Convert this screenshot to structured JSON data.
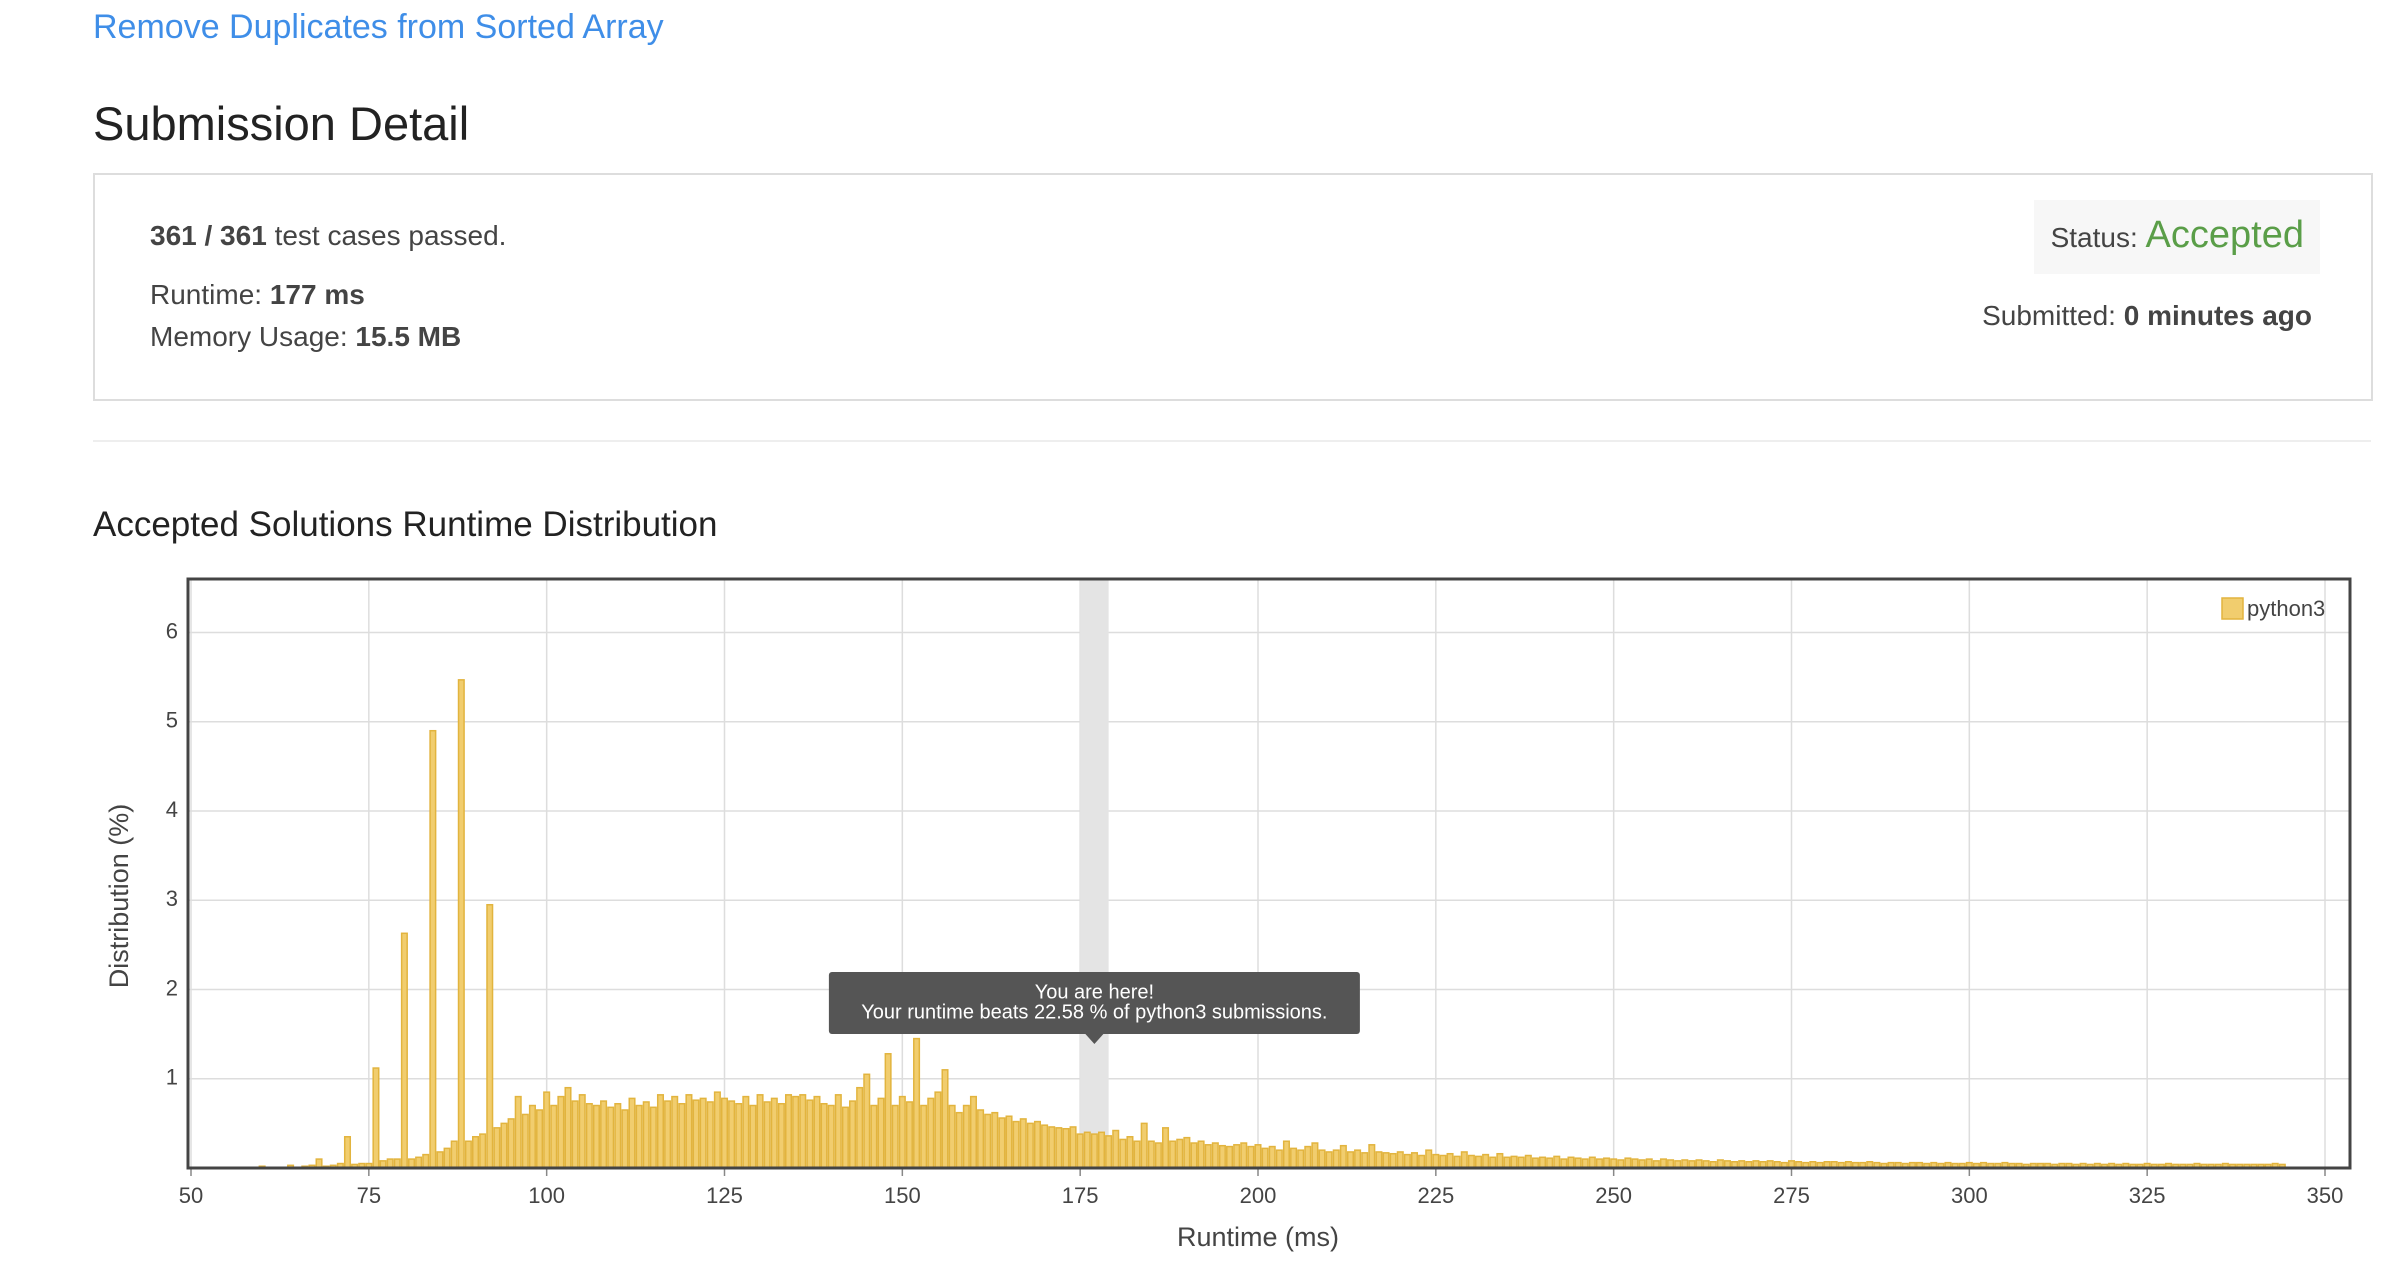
{
  "header": {
    "problem_link": "Remove Duplicates from Sorted Array",
    "title": "Submission Detail"
  },
  "submission": {
    "passed": "361 / 361",
    "passed_text": "test cases passed.",
    "runtime_label": "Runtime:",
    "runtime": "177 ms",
    "memory_label": "Memory Usage:",
    "memory": "15.5 MB",
    "status_label": "Status:",
    "status": "Accepted",
    "submitted_label": "Submitted:",
    "submitted": "0 minutes ago"
  },
  "chart_data": {
    "type": "bar",
    "title": "Accepted Solutions Runtime Distribution",
    "x_label": "Runtime (ms)",
    "y_label": "Distribution (%)",
    "x": [
      60,
      61,
      62,
      63,
      64,
      65,
      66,
      67,
      68,
      69,
      70,
      71,
      72,
      73,
      74,
      75,
      76,
      77,
      78,
      79,
      80,
      81,
      82,
      83,
      84,
      85,
      86,
      87,
      88,
      89,
      90,
      91,
      92,
      93,
      94,
      95,
      96,
      97,
      98,
      99,
      100,
      101,
      102,
      103,
      104,
      105,
      106,
      107,
      108,
      109,
      110,
      111,
      112,
      113,
      114,
      115,
      116,
      117,
      118,
      119,
      120,
      121,
      122,
      123,
      124,
      125,
      126,
      127,
      128,
      129,
      130,
      131,
      132,
      133,
      134,
      135,
      136,
      137,
      138,
      139,
      140,
      141,
      142,
      143,
      144,
      145,
      146,
      147,
      148,
      149,
      150,
      151,
      152,
      153,
      154,
      155,
      156,
      157,
      158,
      159,
      160,
      161,
      162,
      163,
      164,
      165,
      166,
      167,
      168,
      169,
      170,
      171,
      172,
      173,
      174,
      175,
      176,
      177,
      178,
      179,
      180,
      181,
      182,
      183,
      184,
      185,
      186,
      187,
      188,
      189,
      190,
      191,
      192,
      193,
      194,
      195,
      196,
      197,
      198,
      199,
      200,
      201,
      202,
      203,
      204,
      205,
      206,
      207,
      208,
      209,
      210,
      211,
      212,
      213,
      214,
      215,
      216,
      217,
      218,
      219,
      220,
      221,
      222,
      223,
      224,
      225,
      226,
      227,
      228,
      229,
      230,
      231,
      232,
      233,
      234,
      235,
      236,
      237,
      238,
      239,
      240,
      241,
      242,
      243,
      244,
      245,
      246,
      247,
      248,
      249,
      250,
      251,
      252,
      253,
      254,
      255,
      256,
      257,
      258,
      259,
      260,
      261,
      262,
      263,
      264,
      265,
      266,
      267,
      268,
      269,
      270,
      271,
      272,
      273,
      274,
      275,
      276,
      277,
      278,
      279,
      280,
      281,
      282,
      283,
      284,
      285,
      286,
      287,
      288,
      289,
      290,
      291,
      292,
      293,
      294,
      295,
      296,
      297,
      298,
      299,
      300,
      301,
      302,
      303,
      304,
      305,
      306,
      307,
      308,
      309,
      310,
      311,
      312,
      313,
      314,
      315,
      316,
      317,
      318,
      319,
      320,
      321,
      322,
      323,
      324,
      325,
      326,
      327,
      328,
      329,
      330,
      331,
      332,
      333,
      334,
      335,
      336,
      337,
      338,
      339,
      340,
      341,
      342,
      343,
      344
    ],
    "series": [
      {
        "name": "python3",
        "color": "#f1cd6e",
        "values": [
          0.02,
          0,
          0,
          0,
          0.03,
          0,
          0.02,
          0.03,
          0.1,
          0.02,
          0.03,
          0.05,
          0.35,
          0.04,
          0.05,
          0.05,
          1.12,
          0.08,
          0.1,
          0.1,
          2.63,
          0.1,
          0.12,
          0.15,
          4.9,
          0.18,
          0.22,
          0.3,
          5.47,
          0.3,
          0.35,
          0.38,
          2.95,
          0.45,
          0.5,
          0.55,
          0.8,
          0.6,
          0.7,
          0.65,
          0.85,
          0.7,
          0.8,
          0.9,
          0.75,
          0.82,
          0.72,
          0.7,
          0.75,
          0.68,
          0.72,
          0.65,
          0.78,
          0.7,
          0.74,
          0.68,
          0.82,
          0.75,
          0.8,
          0.72,
          0.82,
          0.76,
          0.78,
          0.74,
          0.85,
          0.78,
          0.75,
          0.72,
          0.8,
          0.7,
          0.82,
          0.74,
          0.78,
          0.72,
          0.82,
          0.8,
          0.82,
          0.76,
          0.8,
          0.72,
          0.7,
          0.82,
          0.68,
          0.75,
          0.9,
          1.05,
          0.7,
          0.78,
          1.28,
          0.7,
          0.8,
          0.74,
          1.45,
          0.7,
          0.78,
          0.85,
          1.1,
          0.7,
          0.62,
          0.7,
          0.8,
          0.65,
          0.6,
          0.62,
          0.56,
          0.58,
          0.52,
          0.55,
          0.5,
          0.52,
          0.48,
          0.46,
          0.45,
          0.44,
          0.46,
          0.38,
          0.4,
          0.38,
          0.4,
          0.36,
          0.42,
          0.32,
          0.35,
          0.3,
          0.5,
          0.3,
          0.28,
          0.45,
          0.3,
          0.32,
          0.34,
          0.28,
          0.3,
          0.26,
          0.28,
          0.25,
          0.24,
          0.26,
          0.28,
          0.24,
          0.26,
          0.22,
          0.24,
          0.2,
          0.3,
          0.22,
          0.2,
          0.24,
          0.28,
          0.2,
          0.18,
          0.2,
          0.25,
          0.18,
          0.2,
          0.17,
          0.26,
          0.18,
          0.17,
          0.16,
          0.18,
          0.15,
          0.17,
          0.14,
          0.2,
          0.15,
          0.14,
          0.16,
          0.13,
          0.18,
          0.14,
          0.13,
          0.15,
          0.12,
          0.16,
          0.12,
          0.13,
          0.12,
          0.14,
          0.11,
          0.12,
          0.11,
          0.13,
          0.1,
          0.12,
          0.11,
          0.1,
          0.12,
          0.1,
          0.11,
          0.1,
          0.09,
          0.11,
          0.1,
          0.09,
          0.1,
          0.08,
          0.1,
          0.09,
          0.08,
          0.09,
          0.08,
          0.09,
          0.08,
          0.07,
          0.09,
          0.08,
          0.07,
          0.08,
          0.07,
          0.08,
          0.07,
          0.08,
          0.07,
          0.06,
          0.08,
          0.07,
          0.06,
          0.07,
          0.06,
          0.07,
          0.07,
          0.06,
          0.07,
          0.06,
          0.06,
          0.07,
          0.06,
          0.05,
          0.06,
          0.06,
          0.05,
          0.06,
          0.06,
          0.05,
          0.06,
          0.05,
          0.06,
          0.05,
          0.05,
          0.06,
          0.05,
          0.06,
          0.05,
          0.05,
          0.06,
          0.05,
          0.05,
          0.04,
          0.05,
          0.05,
          0.05,
          0.04,
          0.05,
          0.05,
          0.04,
          0.05,
          0.04,
          0.05,
          0.04,
          0.05,
          0.04,
          0.05,
          0.04,
          0.04,
          0.05,
          0.04,
          0.04,
          0.05,
          0.04,
          0.04,
          0.04,
          0.05,
          0.04,
          0.04,
          0.04,
          0.05,
          0.04,
          0.04,
          0.04,
          0.04,
          0.04,
          0.04,
          0.05,
          0.04
        ]
      }
    ],
    "xlim": [
      50,
      350
    ],
    "ylim": [
      0,
      6.6
    ],
    "xticks": [
      50,
      75,
      100,
      125,
      150,
      175,
      200,
      225,
      250,
      275,
      300,
      325,
      350
    ],
    "yticks": [
      1,
      2,
      3,
      4,
      5,
      6
    ],
    "grid": true,
    "legend": "top-right",
    "highlight": [
      175,
      179
    ],
    "tooltip": [
      "You are here!",
      "Your runtime beats 22.58 % of python3 submissions."
    ]
  }
}
